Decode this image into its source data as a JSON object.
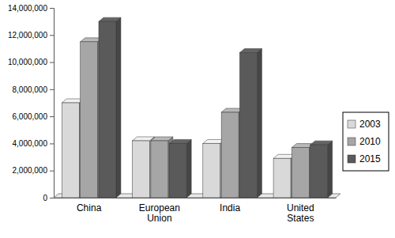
{
  "chart_data": {
    "type": "bar",
    "categories": [
      "China",
      "European Union",
      "India",
      "United States"
    ],
    "series": [
      {
        "name": "2003",
        "color": "#d9d9d9",
        "values": [
          7000000,
          4200000,
          4000000,
          2900000
        ]
      },
      {
        "name": "2010",
        "color": "#a6a6a6",
        "values": [
          11500000,
          4200000,
          6300000,
          3700000
        ]
      },
      {
        "name": "2015",
        "color": "#5a5a5a",
        "values": [
          13000000,
          4000000,
          10700000,
          3900000
        ]
      }
    ],
    "ylim": [
      0,
      14000000
    ],
    "yticks": [
      0,
      {
        "value": 2000000,
        "label": "2,000,000"
      },
      {
        "value": 4000000,
        "label": "4,000,000"
      },
      {
        "value": 6000000,
        "label": "6,000,000"
      },
      {
        "value": 8000000,
        "label": "8,000,000"
      },
      {
        "value": 10000000,
        "label": "10,000,000"
      },
      {
        "value": 12000000,
        "label": "12,000,000"
      },
      {
        "value": 14000000,
        "label": "14,000,000"
      }
    ],
    "legend": "right"
  }
}
